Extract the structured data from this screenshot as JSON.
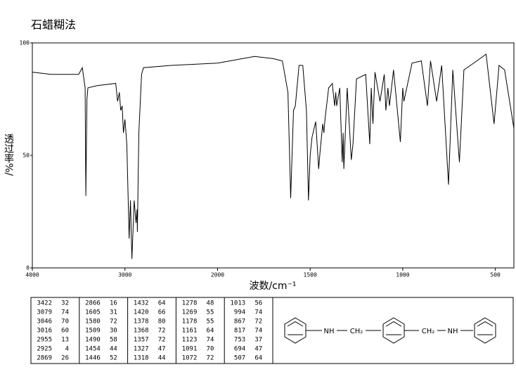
{
  "chart_data": {
    "type": "line",
    "title": "石蜡糊法",
    "xlabel": "波数/cm⁻¹",
    "ylabel": "透过率%/",
    "xlim": [
      4000,
      400
    ],
    "ylim": [
      0,
      100
    ],
    "x_break": {
      "at": 2000,
      "factor": 2
    },
    "xticks": [
      4000,
      3000,
      2000,
      1500,
      1000,
      500
    ],
    "yticks": [
      0,
      50,
      100
    ],
    "color": "#000000",
    "x": [
      4000,
      3800,
      3500,
      3460,
      3430,
      3422,
      3410,
      3400,
      3300,
      3100,
      3079,
      3060,
      3046,
      3030,
      3016,
      3000,
      2980,
      2955,
      2940,
      2925,
      2900,
      2880,
      2869,
      2866,
      2850,
      2820,
      2800,
      2500,
      2000,
      1800,
      1700,
      1650,
      1620,
      1605,
      1590,
      1580,
      1560,
      1540,
      1520,
      1509,
      1500,
      1490,
      1470,
      1454,
      1446,
      1432,
      1426,
      1420,
      1400,
      1380,
      1378,
      1368,
      1362,
      1357,
      1340,
      1327,
      1322,
      1318,
      1300,
      1278,
      1269,
      1250,
      1200,
      1178,
      1170,
      1161,
      1150,
      1123,
      1100,
      1091,
      1080,
      1072,
      1050,
      1013,
      1000,
      994,
      950,
      900,
      867,
      850,
      817,
      790,
      753,
      730,
      694,
      670,
      600,
      550,
      507,
      480,
      450,
      400
    ],
    "values": [
      87,
      86,
      86,
      89,
      80,
      32,
      75,
      80,
      81,
      82,
      74,
      78,
      70,
      72,
      60,
      66,
      55,
      13,
      30,
      4,
      30,
      20,
      26,
      16,
      60,
      86,
      89,
      90,
      91,
      94,
      93,
      92,
      78,
      31,
      70,
      72,
      90,
      90,
      70,
      30,
      50,
      58,
      65,
      44,
      52,
      64,
      60,
      66,
      80,
      82,
      80,
      72,
      78,
      72,
      80,
      47,
      60,
      44,
      80,
      48,
      55,
      84,
      86,
      55,
      80,
      64,
      87,
      74,
      86,
      70,
      80,
      72,
      88,
      56,
      80,
      74,
      91,
      92,
      72,
      92,
      74,
      90,
      37,
      88,
      47,
      88,
      92,
      95,
      64,
      90,
      88,
      62
    ]
  },
  "peaks": [
    [
      [
        3422,
        32
      ],
      [
        3079,
        74
      ],
      [
        3046,
        70
      ],
      [
        3016,
        60
      ],
      [
        2955,
        13
      ],
      [
        2925,
        4
      ],
      [
        2869,
        26
      ]
    ],
    [
      [
        2866,
        16
      ],
      [
        1605,
        31
      ],
      [
        1580,
        72
      ],
      [
        1509,
        30
      ],
      [
        1490,
        58
      ],
      [
        1454,
        44
      ],
      [
        1446,
        52
      ]
    ],
    [
      [
        1432,
        64
      ],
      [
        1420,
        66
      ],
      [
        1378,
        80
      ],
      [
        1368,
        72
      ],
      [
        1357,
        72
      ],
      [
        1327,
        47
      ],
      [
        1318,
        44
      ]
    ],
    [
      [
        1278,
        48
      ],
      [
        1269,
        55
      ],
      [
        1178,
        55
      ],
      [
        1161,
        64
      ],
      [
        1123,
        74
      ],
      [
        1091,
        70
      ],
      [
        1072,
        72
      ]
    ],
    [
      [
        1013,
        56
      ],
      [
        994,
        74
      ],
      [
        867,
        72
      ],
      [
        817,
        74
      ],
      [
        753,
        37
      ],
      [
        694,
        47
      ],
      [
        507,
        64
      ]
    ]
  ],
  "structure": {
    "labels": [
      "NH",
      "CH₂",
      "CH₂",
      "NH"
    ]
  }
}
